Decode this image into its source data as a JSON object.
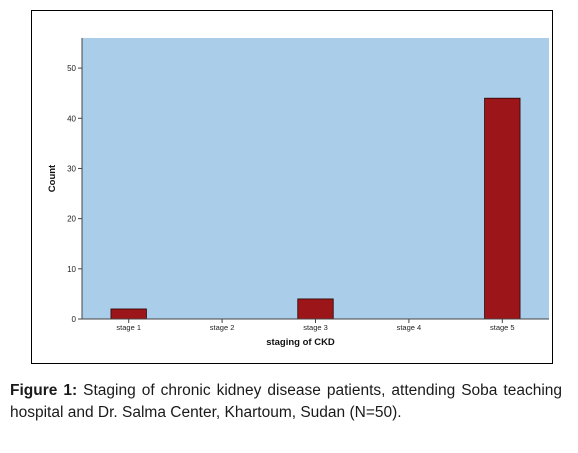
{
  "chart_data": {
    "type": "bar",
    "categories": [
      "stage 1",
      "stage 2",
      "stage 3",
      "stage 4",
      "stage 5"
    ],
    "values": [
      2,
      0,
      4,
      0,
      44
    ],
    "xlabel": "staging of CKD",
    "ylabel": "Count",
    "ylim": [
      0,
      56
    ],
    "yticks": [
      0,
      10,
      20,
      30,
      40,
      50
    ],
    "grid": false,
    "legend": "none",
    "colors": {
      "plot_background": "#aacdea",
      "bar_fill": "#9c1518",
      "bar_stroke": "#2a0505"
    }
  },
  "caption": {
    "label": "Figure 1:",
    "text": "Staging of chronic kidney disease patients, attending Soba teaching hospital and Dr. Salma Center, Khartoum, Sudan (N=50)."
  }
}
